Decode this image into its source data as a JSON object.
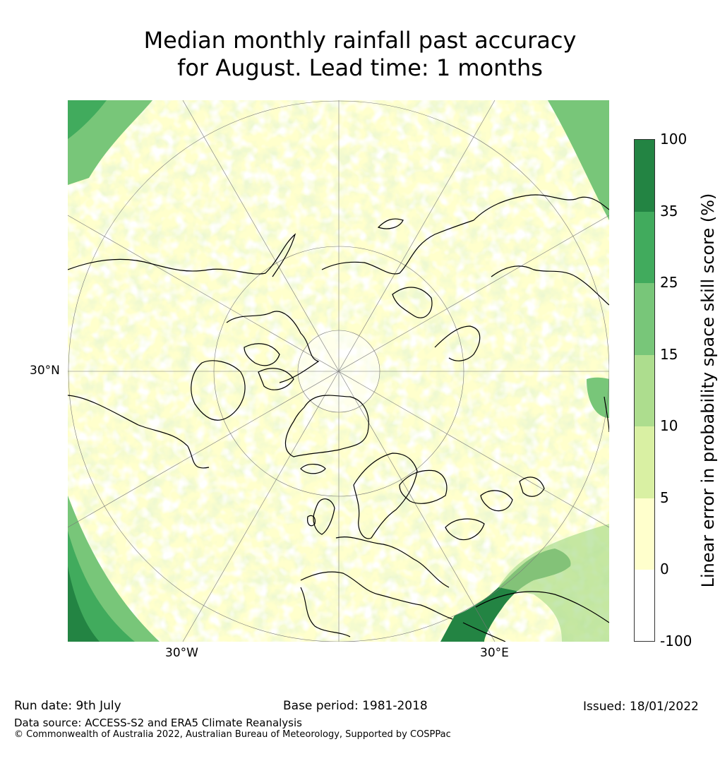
{
  "title": {
    "line1": "Median monthly rainfall past accuracy",
    "line2": "for August. Lead time: 1 months"
  },
  "map": {
    "projection": "north polar stereographic",
    "labels": {
      "lat_30n": "30°N",
      "lon_30w": "30°W",
      "lon_30e": "30°E"
    },
    "colors": {
      "below_0": "#ffffff",
      "0_5": "#ffffcc",
      "5_10": "#d9f0a3",
      "10_15": "#addd8e",
      "15_25": "#78c679",
      "25_35": "#41ab5d",
      "35_100": "#238443"
    }
  },
  "colorbar": {
    "label": "Linear error in probability space skill score (%)",
    "ticks": [
      "100",
      "35",
      "25",
      "15",
      "10",
      "5",
      "0",
      "-100"
    ],
    "segments": [
      {
        "range": "35 to 100",
        "color": "#238443"
      },
      {
        "range": "25 to 35",
        "color": "#41ab5d"
      },
      {
        "range": "15 to 25",
        "color": "#78c679"
      },
      {
        "range": "10 to 15",
        "color": "#addd8e"
      },
      {
        "range": "5 to 10",
        "color": "#d9f0a3"
      },
      {
        "range": "0 to 5",
        "color": "#ffffcc"
      },
      {
        "range": "-100 to 0",
        "color": "#ffffff"
      }
    ]
  },
  "footer": {
    "run_date": "Run date: 9th July",
    "base_period": "Base period: 1981-2018",
    "issued": "Issued: 18/01/2022",
    "data_source": "Data source: ACCESS-S2 and ERA5 Climate Reanalysis",
    "copyright": "© Commonwealth of Australia 2022, Australian Bureau of Meteorology, Supported by COSPPac"
  }
}
